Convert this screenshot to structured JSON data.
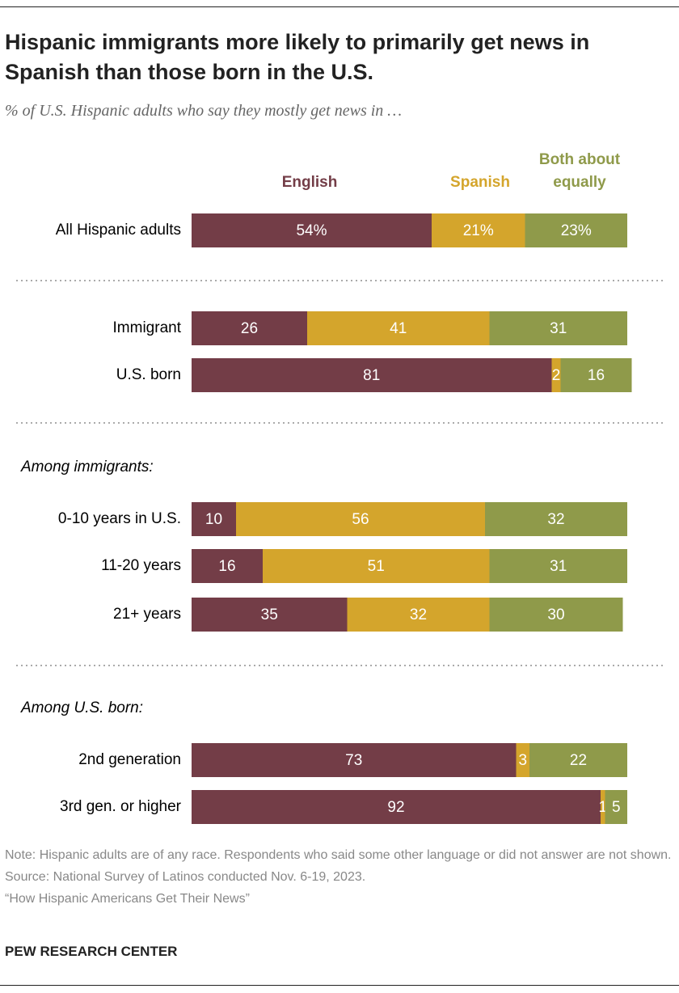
{
  "chart_data": {
    "type": "stacked-bar",
    "title": "Hispanic immigrants more likely to primarily get news in Spanish than those born in the U.S.",
    "subtitle": "% of U.S. Hispanic adults who say they mostly get news in …",
    "categories": [
      "All Hispanic adults",
      "Immigrant",
      "U.S. born",
      "0-10 years in U.S.",
      "11-20 years",
      "21+ years",
      "2nd generation",
      "3rd gen. or higher"
    ],
    "group_labels": [
      "Among immigrants:",
      "Among U.S. born:"
    ],
    "series": [
      {
        "name": "English",
        "color": "#733d47",
        "values": [
          54,
          26,
          81,
          10,
          16,
          35,
          73,
          92
        ],
        "value_labels": [
          "54%",
          "26",
          "81",
          "10",
          "16",
          "35",
          "73",
          "92"
        ]
      },
      {
        "name": "Spanish",
        "color": "#d4a52c",
        "values": [
          21,
          41,
          2,
          56,
          51,
          32,
          3,
          1
        ],
        "value_labels": [
          "21%",
          "41",
          "2",
          "56",
          "51",
          "32",
          "3",
          "1"
        ]
      },
      {
        "name": "Both about equally",
        "color": "#8f9a4a",
        "values": [
          23,
          31,
          16,
          32,
          31,
          30,
          22,
          5
        ],
        "value_labels": [
          "23%",
          "31",
          "16",
          "32",
          "31",
          "30",
          "22",
          "5"
        ]
      }
    ],
    "note": "Note: Hispanic adults are of any race. Respondents who said some other language or did not answer are not shown.",
    "source": "Source: National Survey of Latinos conducted Nov. 6-19, 2023.",
    "report": "“How Hispanic Americans Get Their News”",
    "credit": "PEW RESEARCH CENTER"
  }
}
